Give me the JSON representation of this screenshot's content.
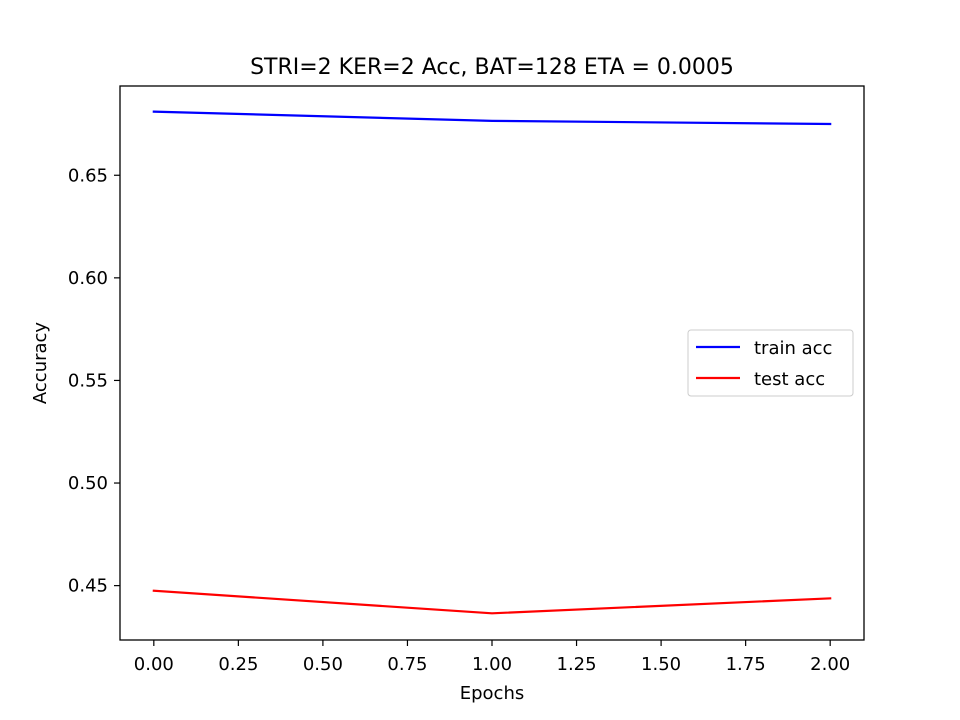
{
  "chart_data": {
    "type": "line",
    "title": "STRI=2 KER=2 Acc, BAT=128 ETA = 0.0005",
    "xlabel": "Epochs",
    "ylabel": "Accuracy",
    "x": [
      0,
      1,
      2
    ],
    "xlim": [
      -0.1,
      2.1
    ],
    "ylim": [
      0.4235,
      0.6935
    ],
    "xticks": [
      0.0,
      0.25,
      0.5,
      0.75,
      1.0,
      1.25,
      1.5,
      1.75,
      2.0
    ],
    "xtick_labels": [
      "0.00",
      "0.25",
      "0.50",
      "0.75",
      "1.00",
      "1.25",
      "1.50",
      "1.75",
      "2.00"
    ],
    "yticks": [
      0.45,
      0.5,
      0.55,
      0.6,
      0.65
    ],
    "ytick_labels": [
      "0.45",
      "0.50",
      "0.55",
      "0.60",
      "0.65"
    ],
    "grid": false,
    "legend_position": "center-right",
    "series": [
      {
        "name": "train acc",
        "color": "#0000ff",
        "values": [
          0.681,
          0.6765,
          0.675
        ]
      },
      {
        "name": "test acc",
        "color": "#ff0000",
        "values": [
          0.4475,
          0.4365,
          0.4438
        ]
      }
    ]
  }
}
